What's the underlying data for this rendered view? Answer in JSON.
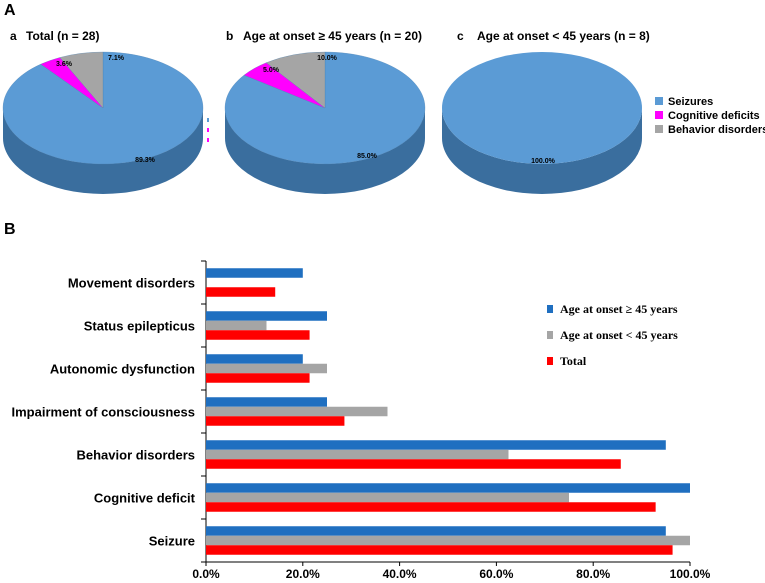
{
  "panel_a_label": "A",
  "panel_b_label": "B",
  "colors": {
    "seizures": "#5b9bd5",
    "seizures_dark": "#3a6e9e",
    "cognitive": "#ff00ff",
    "cognitive_dark": "#b000b0",
    "behavior": "#a5a5a5",
    "behavior_dark": "#707070",
    "bar_onset_ge45": "#1f6fc0",
    "bar_onset_lt45": "#a5a5a5",
    "bar_total": "#ff0000"
  },
  "pies": [
    {
      "letter": "a",
      "title": "Total (n = 28)",
      "slices": [
        {
          "name": "Seizures",
          "value": 89.3,
          "label": "89.3%"
        },
        {
          "name": "Cognitive deficits",
          "value": 3.6,
          "label": "3.6%"
        },
        {
          "name": "Behavior disorders",
          "value": 7.1,
          "label": "7.1%"
        }
      ]
    },
    {
      "letter": "b",
      "title": "Age at onset ≥ 45 years (n = 20)",
      "slices": [
        {
          "name": "Seizures",
          "value": 85.0,
          "label": "85.0%"
        },
        {
          "name": "Cognitive deficits",
          "value": 5.0,
          "label": "5.0%"
        },
        {
          "name": "Behavior disorders",
          "value": 10.0,
          "label": "10.0%"
        }
      ]
    },
    {
      "letter": "c",
      "title": "Age at onset < 45 years (n = 8)",
      "slices": [
        {
          "name": "Seizures",
          "value": 100.0,
          "label": "100.0%"
        }
      ]
    }
  ],
  "pie_legend": [
    "Seizures",
    "Cognitive deficits",
    "Behavior disorders"
  ],
  "chart_data": [
    {
      "type": "pie",
      "title": "Total (n = 28)",
      "categories": [
        "Seizures",
        "Cognitive deficits",
        "Behavior disorders"
      ],
      "values": [
        89.3,
        3.6,
        7.1
      ]
    },
    {
      "type": "pie",
      "title": "Age at onset ≥ 45 years (n = 20)",
      "categories": [
        "Seizures",
        "Cognitive deficits",
        "Behavior disorders"
      ],
      "values": [
        85.0,
        5.0,
        10.0
      ]
    },
    {
      "type": "pie",
      "title": "Age at onset < 45 years (n = 8)",
      "categories": [
        "Seizures"
      ],
      "values": [
        100.0
      ]
    },
    {
      "type": "bar",
      "orientation": "horizontal",
      "title": "",
      "categories": [
        "Movement disorders",
        "Status epilepticus",
        "Autonomic dysfunction",
        "Impairment of consciousness",
        "Behavior disorders",
        "Cognitive deficit",
        "Seizure"
      ],
      "series": [
        {
          "name": "Age at onset ≥ 45 years",
          "values": [
            20.0,
            25.0,
            20.0,
            25.0,
            95.0,
            100.0,
            95.0
          ]
        },
        {
          "name": "Age at onset < 45 years",
          "values": [
            0.0,
            12.5,
            25.0,
            37.5,
            62.5,
            75.0,
            100.0
          ]
        },
        {
          "name": "Total",
          "values": [
            14.3,
            21.4,
            21.4,
            28.6,
            85.7,
            92.9,
            96.4
          ]
        }
      ],
      "xlim": [
        0,
        100
      ],
      "x_ticks": [
        "0.0%",
        "20.0%",
        "40.0%",
        "60.0%",
        "80.0%",
        "100.0%"
      ],
      "legend_position": "right"
    }
  ]
}
